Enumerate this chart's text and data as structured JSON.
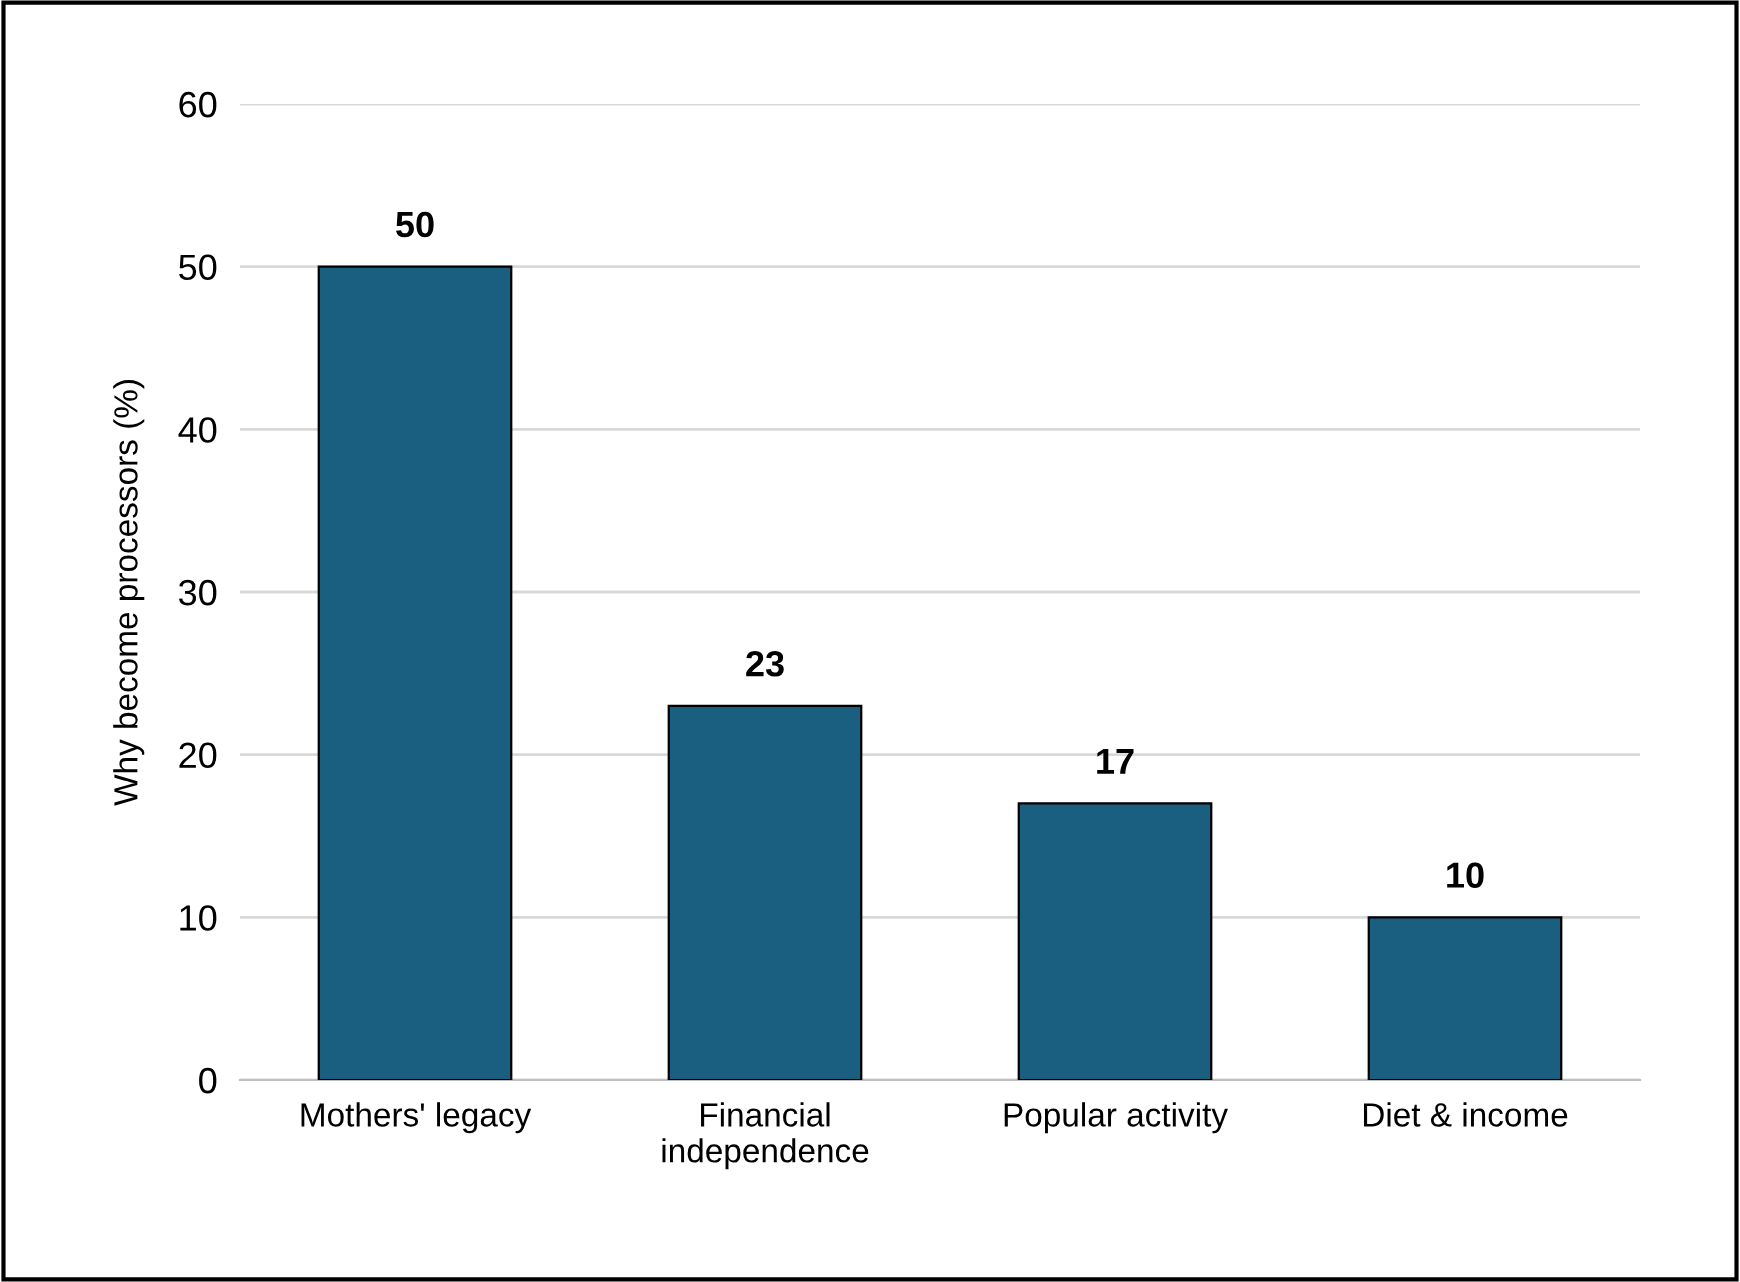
{
  "chart_data": {
    "type": "bar",
    "ylabel": "Why become processors (%)",
    "categories": [
      "Mothers' legacy",
      "Financial\nindependence",
      "Popular activity",
      "Diet & income"
    ],
    "values": [
      50,
      23,
      17,
      10
    ],
    "color": "#1a5e80",
    "ylim": [
      0,
      60
    ],
    "yticks": [
      0,
      10,
      20,
      30,
      40,
      50,
      60
    ],
    "grid": "y",
    "data_labels": true
  }
}
